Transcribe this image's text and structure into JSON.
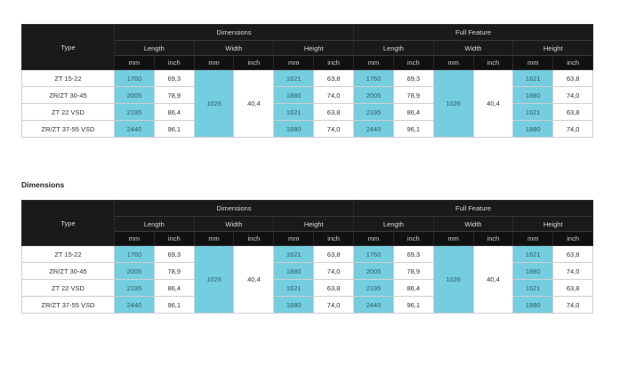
{
  "heading": "Dimensions",
  "table": {
    "type_label": "Type",
    "groups": [
      "Dimensions",
      "Full Feature"
    ],
    "sub_headers": [
      "Length",
      "Width",
      "Height",
      "Length",
      "Width",
      "Height"
    ],
    "units": [
      "mm",
      "inch",
      "mm",
      "inch",
      "mm",
      "inch",
      "mm",
      "inch",
      "mm",
      "inch",
      "mm",
      "inch"
    ],
    "width_mm": "1026",
    "width_inch": "40,4",
    "rows": [
      {
        "type": "ZT 15-22",
        "len_mm": "1760",
        "len_inch": "69,3",
        "h_mm": "1621",
        "h_inch": "63,8",
        "ff_len_mm": "1760",
        "ff_len_inch": "69,3",
        "ff_h_mm": "1621",
        "ff_h_inch": "63,8"
      },
      {
        "type": "ZR/ZT 30-45",
        "len_mm": "2005",
        "len_inch": "78,9",
        "h_mm": "1880",
        "h_inch": "74,0",
        "ff_len_mm": "2005",
        "ff_len_inch": "78,9",
        "ff_h_mm": "1880",
        "ff_h_inch": "74,0"
      },
      {
        "type": "ZT 22 VSD",
        "len_mm": "2195",
        "len_inch": "86,4",
        "h_mm": "1621",
        "h_inch": "63,8",
        "ff_len_mm": "2195",
        "ff_len_inch": "86,4",
        "ff_h_mm": "1621",
        "ff_h_inch": "63,8"
      },
      {
        "type": "ZR/ZT 37-55 VSD",
        "len_mm": "2440",
        "len_inch": "96,1",
        "h_mm": "1880",
        "h_inch": "74,0",
        "ff_len_mm": "2440",
        "ff_len_inch": "96,1",
        "ff_h_mm": "1880",
        "ff_h_inch": "74,0"
      }
    ]
  }
}
